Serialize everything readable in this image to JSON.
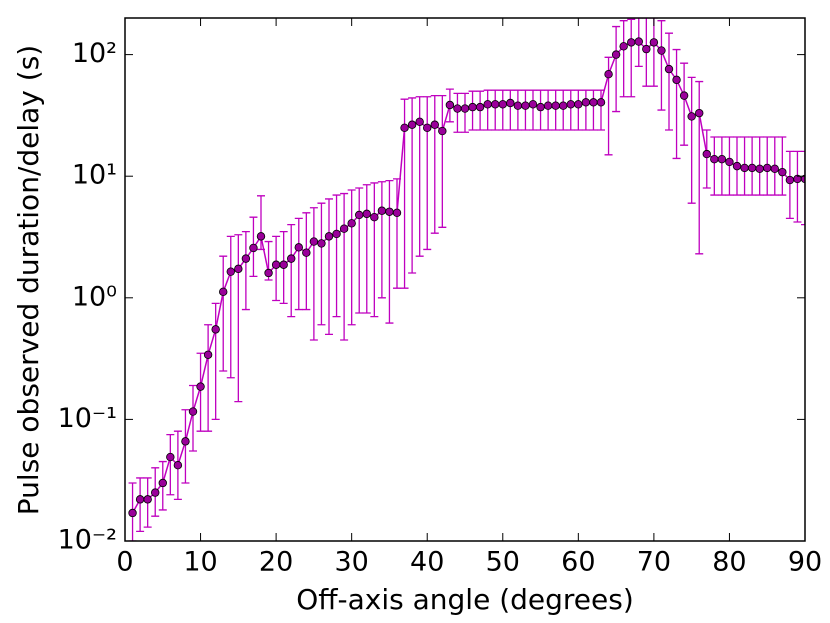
{
  "chart_data": {
    "type": "errorline",
    "xlabel": "Off-axis angle (degrees)",
    "ylabel": "Pulse observed duration/delay (s)",
    "x": [
      1,
      2,
      3,
      4,
      5,
      6,
      7,
      8,
      9,
      10,
      11,
      12,
      13,
      14,
      15,
      16,
      17,
      18,
      19,
      20,
      21,
      22,
      23,
      24,
      25,
      26,
      27,
      28,
      29,
      30,
      31,
      32,
      33,
      34,
      35,
      36,
      37,
      38,
      39,
      40,
      41,
      42,
      43,
      44,
      45,
      46,
      47,
      48,
      49,
      50,
      51,
      52,
      53,
      54,
      55,
      56,
      57,
      58,
      59,
      60,
      61,
      62,
      63,
      64,
      65,
      66,
      67,
      68,
      69,
      70,
      71,
      72,
      73,
      74,
      75,
      76,
      77,
      78,
      79,
      80,
      81,
      82,
      83,
      84,
      85,
      86,
      87,
      88,
      89,
      90
    ],
    "series": [
      {
        "color": "#bf00bf",
        "marker_color": "#9a009a",
        "values": [
          0.017,
          0.022,
          0.022,
          0.025,
          0.03,
          0.049,
          0.042,
          0.066,
          0.116,
          0.186,
          0.34,
          0.55,
          1.12,
          1.64,
          1.73,
          2.1,
          2.57,
          3.2,
          1.6,
          1.87,
          1.87,
          2.1,
          2.6,
          2.35,
          2.9,
          2.8,
          3.2,
          3.35,
          3.7,
          4.1,
          4.8,
          4.9,
          4.6,
          5.2,
          5.1,
          5.0,
          25,
          26.5,
          28,
          25,
          26.5,
          23.5,
          38.5,
          36,
          36,
          37,
          37,
          39,
          39,
          39,
          40,
          38,
          38,
          39,
          37,
          38,
          38,
          38,
          39,
          39,
          40.5,
          40.5,
          40.5,
          69,
          100,
          117,
          126,
          128,
          111,
          126,
          108,
          76,
          62,
          46,
          31,
          33,
          15.2,
          13.8,
          13.8,
          13.1,
          12.1,
          11.7,
          11.7,
          11.5,
          11.7,
          11.5,
          10.8,
          9.3,
          9.5,
          9.5
        ],
        "lower": [
          0.01,
          0.012,
          0.013,
          0.016,
          0.018,
          0.024,
          0.022,
          0.03,
          0.055,
          0.08,
          0.08,
          0.1,
          0.25,
          0.22,
          0.14,
          0.8,
          1.5,
          2.5,
          1.4,
          0.95,
          0.9,
          0.7,
          0.8,
          0.8,
          0.45,
          0.6,
          0.5,
          0.7,
          0.45,
          0.6,
          0.75,
          0.75,
          0.7,
          1.0,
          0.62,
          1.2,
          1.2,
          1.6,
          2.2,
          2.5,
          3.4,
          3.8,
          28,
          23,
          23,
          24,
          24,
          24,
          24,
          24,
          24,
          24,
          24,
          24,
          24,
          24,
          24,
          24,
          24,
          24,
          24,
          24,
          24,
          15,
          34,
          45,
          45,
          80,
          55,
          55,
          35,
          24,
          14,
          18,
          6,
          2.3,
          8,
          7,
          7,
          7,
          7,
          7,
          7,
          7,
          7,
          7,
          7,
          4.5,
          4.2,
          4.0
        ],
        "upper": [
          0.03,
          0.033,
          0.033,
          0.04,
          0.045,
          0.075,
          0.08,
          0.12,
          0.19,
          0.35,
          0.6,
          0.9,
          2.2,
          3.2,
          3.3,
          3.5,
          4.6,
          6.9,
          2.9,
          3.2,
          3.5,
          4.0,
          4.5,
          5.0,
          5.5,
          6.0,
          6.5,
          7.0,
          7.2,
          7.7,
          8.0,
          8.5,
          8.8,
          9.0,
          9.2,
          9.5,
          43,
          44,
          45,
          45,
          46,
          46,
          52,
          48,
          48,
          50,
          50,
          51,
          51,
          51,
          51,
          51,
          51,
          51,
          51,
          51,
          51,
          51,
          51,
          51,
          51,
          51,
          51,
          95,
          170,
          190,
          195,
          200,
          200,
          200,
          190,
          150,
          110,
          85,
          65,
          60,
          24,
          21,
          21,
          21,
          21,
          21,
          21,
          21,
          21,
          21,
          21,
          16,
          16,
          16
        ]
      }
    ],
    "xlim": [
      0,
      90
    ],
    "xticks": [
      0,
      10,
      20,
      30,
      40,
      50,
      60,
      70,
      80,
      90
    ],
    "ylim": [
      0.01,
      200
    ],
    "log_y": true,
    "yticks": [
      {
        "value": 0.01,
        "label": "10⁻²"
      },
      {
        "value": 0.1,
        "label": "10⁻¹"
      },
      {
        "value": 1,
        "label": "10⁰"
      },
      {
        "value": 10,
        "label": "10¹"
      },
      {
        "value": 100,
        "label": "10²"
      }
    ]
  }
}
